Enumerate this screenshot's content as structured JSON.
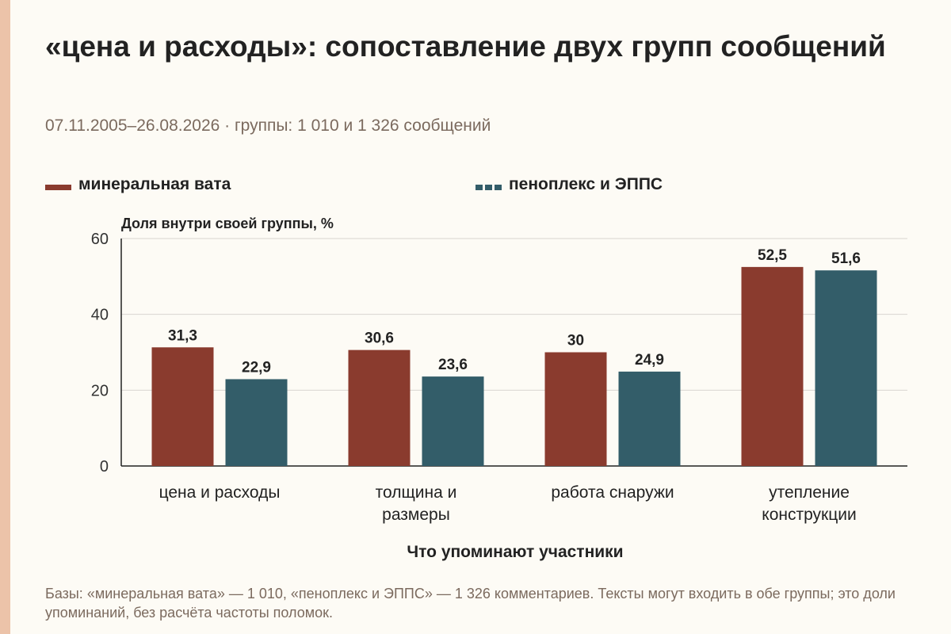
{
  "title": "«цена и расходы»: сопоставление двух групп сообщений",
  "subtitle": "07.11.2005–26.08.2026 · группы: 1 010 и 1 326 сообщений",
  "footnote": "Базы: «минеральная вата» — 1 010, «пеноплекс и ЭППС» — 1 326 комментариев. Тексты могут входить в обе группы; это доли упоминаний, без расчёта частоты поломок.",
  "colors": {
    "background": "#fdfbf5",
    "accent_stripe": "#ecc3a9",
    "series_1": "#8a3b2e",
    "series_2": "#335d69",
    "grid": "#d9d6d0"
  },
  "chart_data": {
    "type": "bar",
    "title": "«цена и расходы»: сопоставление двух групп сообщений",
    "ylabel": "Доля внутри своей группы, %",
    "xlabel": "Что упоминают участники",
    "ylim": [
      0,
      60
    ],
    "yticks": [
      0,
      20,
      40,
      60
    ],
    "grid": true,
    "legend_position": "top",
    "categories": [
      [
        "цена и расходы"
      ],
      [
        "толщина и",
        "размеры"
      ],
      [
        "работа снаружи"
      ],
      [
        "утепление",
        "конструкции"
      ]
    ],
    "series": [
      {
        "name": "минеральная вата",
        "color": "#8a3b2e",
        "values": [
          31.3,
          30.6,
          30,
          52.5
        ],
        "labels": [
          "31,3",
          "30,6",
          "30",
          "52,5"
        ]
      },
      {
        "name": "пеноплекс и ЭППС",
        "color": "#335d69",
        "values": [
          22.9,
          23.6,
          24.9,
          51.6
        ],
        "labels": [
          "22,9",
          "23,6",
          "24,9",
          "51,6"
        ]
      }
    ]
  }
}
